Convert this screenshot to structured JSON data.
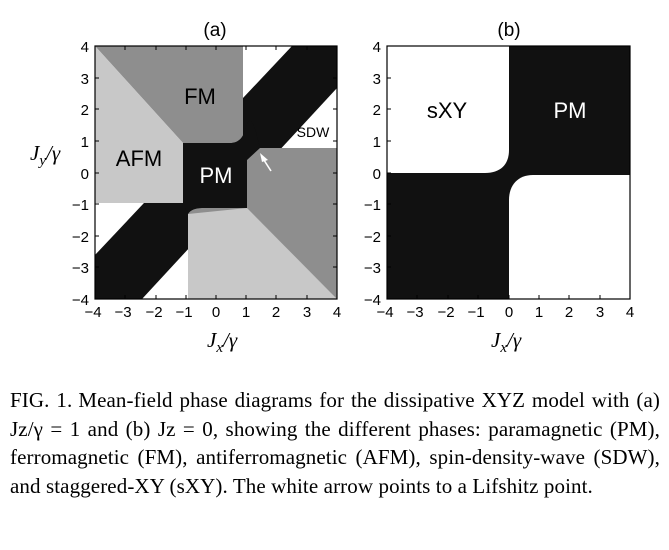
{
  "figure": {
    "panel_a": {
      "letter": "(a)",
      "regions": {
        "fm": "FM",
        "afm": "AFM",
        "pm": "PM",
        "sdw": "SDW"
      },
      "x_ticks": [
        "−4",
        "−3",
        "−2",
        "−1",
        "0",
        "1",
        "2",
        "3",
        "4"
      ],
      "y_ticks": [
        "4",
        "3",
        "2",
        "1",
        "0",
        "−1",
        "−2",
        "−3",
        "−4"
      ],
      "xlabel_main": "J",
      "xlabel_sub": "x",
      "xlabel_rest": "/γ",
      "ylabel_main": "J",
      "ylabel_sub": "y",
      "ylabel_rest": "/γ"
    },
    "panel_b": {
      "letter": "(b)",
      "regions": {
        "sxy": "sXY",
        "pm": "PM"
      },
      "x_ticks": [
        "−4",
        "−3",
        "−2",
        "−1",
        "0",
        "1",
        "2",
        "3",
        "4"
      ],
      "y_ticks": [
        "4",
        "3",
        "2",
        "1",
        "0",
        "−1",
        "−2",
        "−3",
        "−4"
      ],
      "xlabel_main": "J",
      "xlabel_sub": "x",
      "xlabel_rest": "/γ"
    },
    "colors": {
      "pm": "#111111",
      "fm": "#8e8e8e",
      "afm": "#c8c8c8",
      "sdw": "#ffffff"
    }
  },
  "caption": {
    "label": "FIG. 1.",
    "text": "Mean-field phase diagrams for the dissipative XYZ model with (a) Jz/γ = 1 and (b) Jz = 0, showing the different phases: paramagnetic (PM), ferromagnetic (FM), antiferromagnetic (AFM), spin-density-wave (SDW), and staggered-XY (sXY). The white arrow points to a Lifshitz point."
  }
}
